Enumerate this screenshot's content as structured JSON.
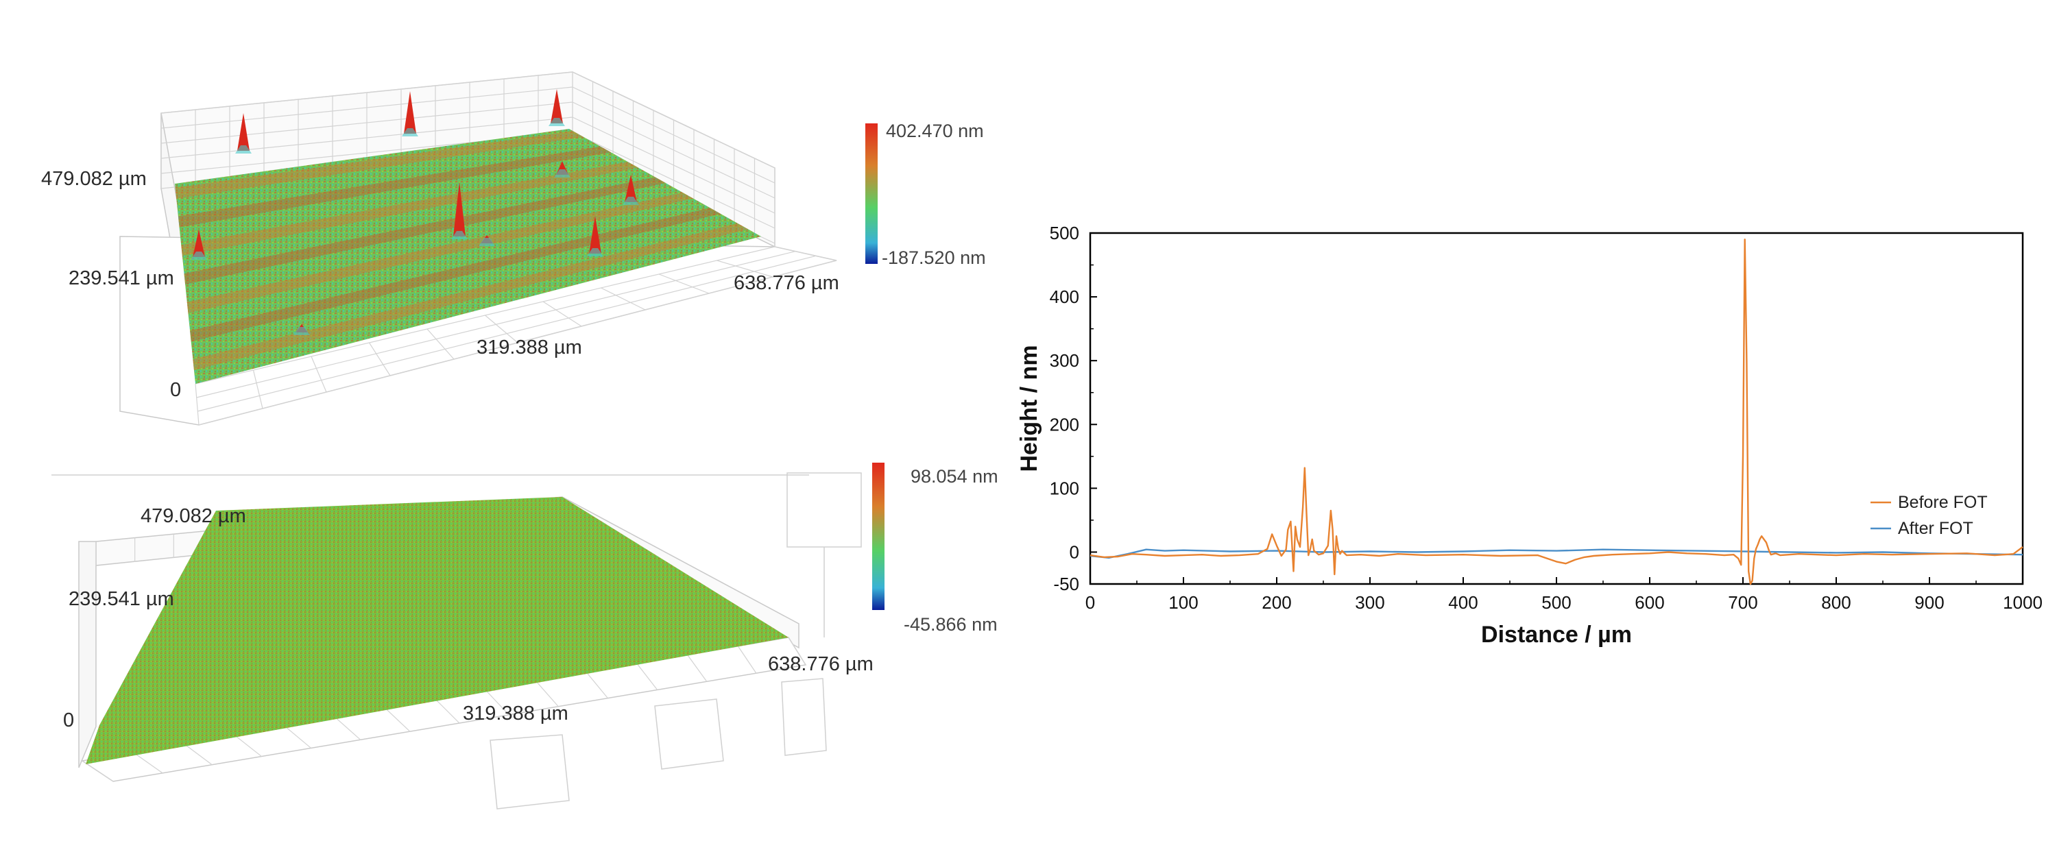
{
  "surface_before": {
    "y_labels": [
      "479.082 µm",
      "239.541 µm",
      "0"
    ],
    "x_end_label": "638.776 µm",
    "x_mid_label": "319.388 µm",
    "colorbar_max": "402.470 nm",
    "colorbar_min": "-187.520 nm"
  },
  "surface_after": {
    "y_labels": [
      "479.082 µm",
      "239.541 µm",
      "0"
    ],
    "x_end_label": "638.776 µm",
    "x_mid_label": "319.388 µm",
    "colorbar_max": "98.054 nm",
    "colorbar_min": "-45.866 nm"
  },
  "chart_data": {
    "type": "line",
    "title": "",
    "xlabel": "Distance / µm",
    "ylabel": "Height / nm",
    "xlim": [
      0,
      1000
    ],
    "ylim": [
      -50,
      500
    ],
    "xticks": [
      0,
      100,
      200,
      300,
      400,
      500,
      600,
      700,
      800,
      900,
      1000
    ],
    "yticks": [
      -50,
      0,
      100,
      200,
      300,
      400,
      500
    ],
    "legend_position": "right",
    "series": [
      {
        "name": "Before FOT",
        "color": "#e8822f",
        "x": [
          0,
          15,
          30,
          45,
          60,
          80,
          100,
          120,
          140,
          160,
          180,
          190,
          195,
          200,
          205,
          210,
          212,
          215,
          218,
          220,
          222,
          225,
          228,
          230,
          232,
          234,
          236,
          238,
          240,
          245,
          250,
          255,
          258,
          260,
          262,
          264,
          266,
          268,
          270,
          275,
          290,
          310,
          330,
          360,
          400,
          440,
          480,
          500,
          510,
          520,
          530,
          540,
          560,
          580,
          600,
          620,
          640,
          660,
          680,
          690,
          695,
          698,
          700,
          702,
          704,
          706,
          708,
          710,
          712,
          714,
          716,
          718,
          720,
          725,
          728,
          730,
          735,
          740,
          760,
          780,
          800,
          830,
          860,
          900,
          940,
          970,
          990,
          1000
        ],
        "y": [
          -5,
          -8,
          -7,
          -3,
          -4,
          -6,
          -5,
          -4,
          -6,
          -5,
          -3,
          5,
          28,
          10,
          -6,
          4,
          35,
          48,
          -30,
          40,
          20,
          8,
          70,
          132,
          60,
          -5,
          5,
          20,
          2,
          -4,
          -2,
          10,
          65,
          35,
          -35,
          25,
          5,
          -3,
          2,
          -5,
          -4,
          -6,
          -3,
          -5,
          -4,
          -6,
          -5,
          -15,
          -18,
          -12,
          -8,
          -6,
          -4,
          -3,
          -2,
          0,
          -2,
          -3,
          -5,
          -4,
          -10,
          -20,
          150,
          490,
          300,
          -30,
          -50,
          -45,
          -10,
          5,
          12,
          20,
          25,
          15,
          2,
          -4,
          -2,
          -5,
          -3,
          -4,
          -5,
          -3,
          -4,
          -3,
          -2,
          -5,
          -3,
          8
        ]
      },
      {
        "name": "After   FOT",
        "color": "#4a8ec8",
        "x": [
          0,
          20,
          40,
          60,
          80,
          100,
          150,
          200,
          250,
          300,
          350,
          400,
          450,
          500,
          550,
          600,
          650,
          700,
          750,
          800,
          850,
          900,
          950,
          1000
        ],
        "y": [
          -6,
          -9,
          -3,
          4,
          2,
          3,
          1,
          2,
          0,
          1,
          0,
          1,
          3,
          2,
          4,
          3,
          2,
          1,
          0,
          -1,
          0,
          -2,
          -3,
          -4
        ]
      }
    ]
  },
  "colors": {
    "heat_red": "#d62a1e",
    "heat_orange": "#d9802c",
    "heat_green": "#46c05a",
    "heat_cyan": "#46c8d8",
    "heat_blue": "#0a1e9a",
    "grid": "#cfcfcf"
  }
}
